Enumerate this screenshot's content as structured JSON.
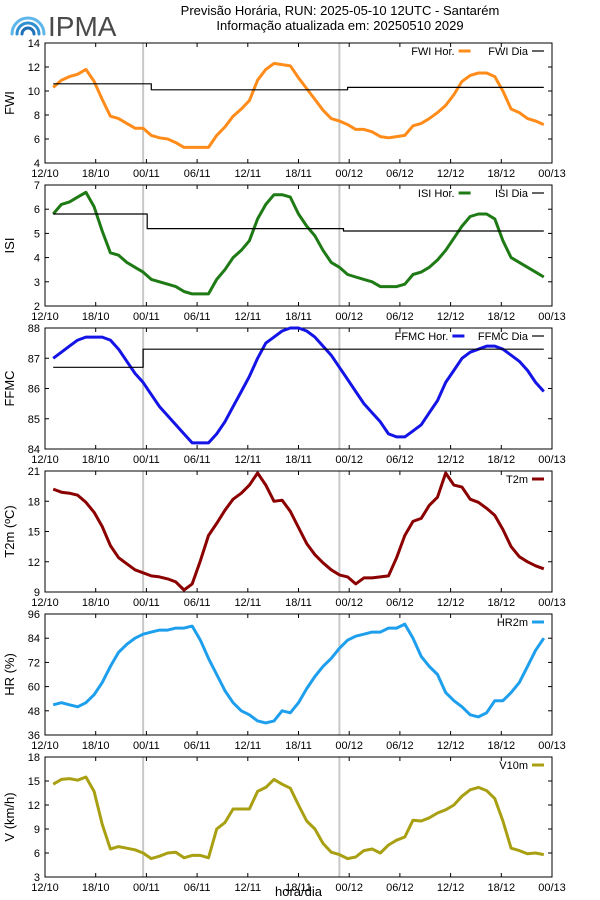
{
  "header": {
    "brand": "IPMA",
    "line1": "Previsão Horária, RUN: 2025-05-10 12UTC - Santarém",
    "line2": "Informação atualizada em: 20250510 2029"
  },
  "colors": {
    "fwi": "#ff8c1a",
    "isi": "#1e7a14",
    "ffmc": "#1414e6",
    "t2m": "#8b0000",
    "hr": "#1e9fee",
    "v10": "#a8a012",
    "daily": "#000000",
    "vline": "#c8c8c8"
  },
  "x_ticks": [
    "12/10",
    "18/10",
    "00/11",
    "06/11",
    "12/11",
    "18/11",
    "00/12",
    "06/12",
    "12/12",
    "18/12",
    "00/13"
  ],
  "xlabel": "hora/dia",
  "chart_data": [
    {
      "id": "fwi",
      "type": "line",
      "ylabel": "FWI",
      "ylim": [
        4,
        14
      ],
      "yticks": [
        4,
        6,
        8,
        10,
        12,
        14
      ],
      "show_xticks": true,
      "legend": [
        "FWI Hor.",
        "FWI Dia"
      ],
      "series": [
        {
          "name": "FWI Hor.",
          "x": [
            0,
            1,
            2,
            3,
            4,
            5,
            6,
            7,
            8,
            9,
            10,
            11,
            12,
            13,
            14,
            15,
            16,
            17,
            18,
            19,
            20,
            21,
            22,
            23,
            24,
            25,
            26,
            27,
            28,
            29,
            30,
            31,
            32,
            33,
            34,
            35,
            36,
            37,
            38,
            39,
            40,
            41,
            42,
            43,
            44,
            45,
            46,
            47,
            48,
            49,
            50,
            51,
            52,
            53,
            54,
            55,
            56,
            57,
            58,
            59,
            60
          ],
          "values": [
            10.3,
            10.9,
            11.2,
            11.4,
            11.8,
            10.8,
            9.3,
            7.9,
            7.7,
            7.3,
            6.9,
            6.9,
            6.3,
            6.1,
            6.0,
            5.7,
            5.3,
            5.3,
            5.3,
            5.3,
            6.3,
            7.0,
            7.9,
            8.5,
            9.2,
            10.9,
            11.8,
            12.3,
            12.2,
            12.1,
            11.1,
            10.2,
            9.3,
            8.4,
            7.7,
            7.5,
            7.2,
            6.8,
            6.8,
            6.6,
            6.2,
            6.1,
            6.2,
            6.3,
            7.1,
            7.3,
            7.7,
            8.2,
            8.8,
            9.7,
            10.8,
            11.3,
            11.5,
            11.5,
            11.2,
            10.0,
            8.5,
            8.2,
            7.7,
            7.5,
            7.2
          ]
        },
        {
          "name": "FWI Dia",
          "x": [
            0,
            12,
            12,
            36,
            36,
            60
          ],
          "values": [
            10.6,
            10.6,
            10.1,
            10.1,
            10.3,
            10.3
          ]
        }
      ]
    },
    {
      "id": "isi",
      "type": "line",
      "ylabel": "ISI",
      "ylim": [
        2,
        7
      ],
      "yticks": [
        2,
        3,
        4,
        5,
        6,
        7
      ],
      "show_xticks": true,
      "legend": [
        "ISI Hor.",
        "ISI Dia"
      ],
      "series": [
        {
          "name": "ISI Hor.",
          "x": [
            0,
            1,
            2,
            3,
            4,
            5,
            6,
            7,
            8,
            9,
            10,
            11,
            12,
            13,
            14,
            15,
            16,
            17,
            18,
            19,
            20,
            21,
            22,
            23,
            24,
            25,
            26,
            27,
            28,
            29,
            30,
            31,
            32,
            33,
            34,
            35,
            36,
            37,
            38,
            39,
            40,
            41,
            42,
            43,
            44,
            45,
            46,
            47,
            48,
            49,
            50,
            51,
            52,
            53,
            54,
            55,
            56,
            57,
            58,
            59,
            60
          ],
          "values": [
            5.8,
            6.2,
            6.3,
            6.5,
            6.7,
            6.1,
            5.1,
            4.2,
            4.1,
            3.8,
            3.6,
            3.4,
            3.1,
            3.0,
            2.9,
            2.8,
            2.6,
            2.5,
            2.5,
            2.5,
            3.1,
            3.5,
            4.0,
            4.3,
            4.7,
            5.6,
            6.2,
            6.6,
            6.6,
            6.5,
            5.8,
            5.3,
            4.9,
            4.3,
            3.8,
            3.6,
            3.3,
            3.2,
            3.1,
            3.0,
            2.8,
            2.8,
            2.8,
            2.9,
            3.3,
            3.4,
            3.6,
            3.9,
            4.3,
            4.8,
            5.3,
            5.7,
            5.8,
            5.8,
            5.6,
            4.7,
            4.0,
            3.8,
            3.6,
            3.4,
            3.2
          ]
        },
        {
          "name": "ISI Dia",
          "x": [
            0,
            11.5,
            11.5,
            35.5,
            35.5,
            60
          ],
          "values": [
            5.8,
            5.8,
            5.2,
            5.2,
            5.1,
            5.1
          ]
        }
      ]
    },
    {
      "id": "ffmc",
      "type": "line",
      "ylabel": "FFMC",
      "ylim": [
        84,
        88
      ],
      "yticks": [
        84,
        85,
        86,
        87,
        88
      ],
      "show_xticks": true,
      "legend": [
        "FFMC Hor.",
        "FFMC Dia"
      ],
      "series": [
        {
          "name": "FFMC Hor.",
          "x": [
            0,
            1,
            2,
            3,
            4,
            5,
            6,
            7,
            8,
            9,
            10,
            11,
            12,
            13,
            14,
            15,
            16,
            17,
            18,
            19,
            20,
            21,
            22,
            23,
            24,
            25,
            26,
            27,
            28,
            29,
            30,
            31,
            32,
            33,
            34,
            35,
            36,
            37,
            38,
            39,
            40,
            41,
            42,
            43,
            44,
            45,
            46,
            47,
            48,
            49,
            50,
            51,
            52,
            53,
            54,
            55,
            56,
            57,
            58,
            59,
            60
          ],
          "values": [
            87.0,
            87.2,
            87.4,
            87.6,
            87.7,
            87.7,
            87.7,
            87.6,
            87.3,
            86.9,
            86.5,
            86.2,
            85.8,
            85.4,
            85.1,
            84.8,
            84.5,
            84.2,
            84.2,
            84.2,
            84.5,
            84.9,
            85.4,
            85.9,
            86.4,
            87.0,
            87.5,
            87.7,
            87.9,
            88.0,
            88.0,
            87.9,
            87.7,
            87.4,
            87.1,
            86.7,
            86.3,
            85.9,
            85.5,
            85.2,
            84.9,
            84.5,
            84.4,
            84.4,
            84.6,
            84.8,
            85.2,
            85.6,
            86.2,
            86.6,
            87.0,
            87.2,
            87.3,
            87.4,
            87.4,
            87.3,
            87.1,
            86.9,
            86.6,
            86.2,
            85.9
          ]
        },
        {
          "name": "FFMC Dia",
          "x": [
            0,
            11,
            11,
            60
          ],
          "values": [
            86.7,
            86.7,
            87.3,
            87.3
          ]
        }
      ]
    },
    {
      "id": "t2m",
      "type": "line",
      "ylabel": "T2m (ºC)",
      "ylim": [
        9,
        21
      ],
      "yticks": [
        9,
        12,
        15,
        18,
        21
      ],
      "show_xticks": true,
      "legend": [
        "T2m"
      ],
      "series": [
        {
          "name": "T2m",
          "x": [
            0,
            1,
            2,
            3,
            4,
            5,
            6,
            7,
            8,
            9,
            10,
            11,
            12,
            13,
            14,
            15,
            16,
            17,
            18,
            19,
            20,
            21,
            22,
            23,
            24,
            25,
            26,
            27,
            28,
            29,
            30,
            31,
            32,
            33,
            34,
            35,
            36,
            37,
            38,
            39,
            40,
            41,
            42,
            43,
            44,
            45,
            46,
            47,
            48,
            49,
            50,
            51,
            52,
            53,
            54,
            55,
            56,
            57,
            58,
            59,
            60
          ],
          "values": [
            19.2,
            18.9,
            18.8,
            18.6,
            17.9,
            16.9,
            15.5,
            13.6,
            12.4,
            11.8,
            11.2,
            10.9,
            10.6,
            10.5,
            10.3,
            10.0,
            9.2,
            9.8,
            12.1,
            14.6,
            15.8,
            17.1,
            18.2,
            18.8,
            19.6,
            20.8,
            19.6,
            18.0,
            18.1,
            17.0,
            15.4,
            13.8,
            12.7,
            11.9,
            11.2,
            10.7,
            10.5,
            9.8,
            10.4,
            10.4,
            10.5,
            10.6,
            12.4,
            14.6,
            16.0,
            16.3,
            17.6,
            18.4,
            20.8,
            19.6,
            19.4,
            18.2,
            17.9,
            17.3,
            16.6,
            15.2,
            13.5,
            12.5,
            12.0,
            11.6,
            11.3
          ]
        }
      ]
    },
    {
      "id": "hr",
      "type": "line",
      "ylabel": "HR (%)",
      "ylim": [
        36,
        96
      ],
      "yticks": [
        36,
        48,
        60,
        72,
        84,
        96
      ],
      "show_xticks": true,
      "legend": [
        "HR2m"
      ],
      "series": [
        {
          "name": "HR2m",
          "x": [
            0,
            1,
            2,
            3,
            4,
            5,
            6,
            7,
            8,
            9,
            10,
            11,
            12,
            13,
            14,
            15,
            16,
            17,
            18,
            19,
            20,
            21,
            22,
            23,
            24,
            25,
            26,
            27,
            28,
            29,
            30,
            31,
            32,
            33,
            34,
            35,
            36,
            37,
            38,
            39,
            40,
            41,
            42,
            43,
            44,
            45,
            46,
            47,
            48,
            49,
            50,
            51,
            52,
            53,
            54,
            55,
            56,
            57,
            58,
            59,
            60
          ],
          "values": [
            51,
            52,
            51,
            50,
            52,
            56,
            62,
            70,
            77,
            81,
            84,
            86,
            87,
            88,
            88,
            89,
            89,
            90,
            83,
            74,
            66,
            58,
            52,
            48,
            46,
            43,
            42,
            43,
            48,
            47,
            52,
            59,
            65,
            70,
            74,
            79,
            83,
            85,
            86,
            87,
            87,
            89,
            89,
            91,
            84,
            75,
            70,
            66,
            57,
            53,
            50,
            46,
            45,
            47,
            53,
            53,
            57,
            62,
            70,
            78,
            84
          ]
        }
      ]
    },
    {
      "id": "v10",
      "type": "line",
      "ylabel": "V (km/h)",
      "ylim": [
        3,
        18
      ],
      "yticks": [
        3,
        6,
        9,
        12,
        15,
        18
      ],
      "show_xticks": true,
      "legend": [
        "V10m"
      ],
      "series": [
        {
          "name": "V10m",
          "x": [
            0,
            1,
            2,
            3,
            4,
            5,
            6,
            7,
            8,
            9,
            10,
            11,
            12,
            13,
            14,
            15,
            16,
            17,
            18,
            19,
            20,
            21,
            22,
            23,
            24,
            25,
            26,
            27,
            28,
            29,
            30,
            31,
            32,
            33,
            34,
            35,
            36,
            37,
            38,
            39,
            40,
            41,
            42,
            43,
            44,
            45,
            46,
            47,
            48,
            49,
            50,
            51,
            52,
            53,
            54,
            55,
            56,
            57,
            58,
            59,
            60
          ],
          "values": [
            14.6,
            15.2,
            15.3,
            15.1,
            15.5,
            13.7,
            9.6,
            6.5,
            6.8,
            6.6,
            6.4,
            6.0,
            5.3,
            5.6,
            6.0,
            6.1,
            5.4,
            5.7,
            5.7,
            5.4,
            9.0,
            9.8,
            11.5,
            11.5,
            11.5,
            13.7,
            14.2,
            15.2,
            14.6,
            14.1,
            12.0,
            10.0,
            9.0,
            7.2,
            6.1,
            5.8,
            5.3,
            5.5,
            6.3,
            6.5,
            6.0,
            7.0,
            7.6,
            8.0,
            10.1,
            10.0,
            10.4,
            11.0,
            11.4,
            12.0,
            13.1,
            13.9,
            14.2,
            13.8,
            12.8,
            10.0,
            6.6,
            6.3,
            5.9,
            6.0,
            5.8
          ]
        }
      ]
    }
  ]
}
